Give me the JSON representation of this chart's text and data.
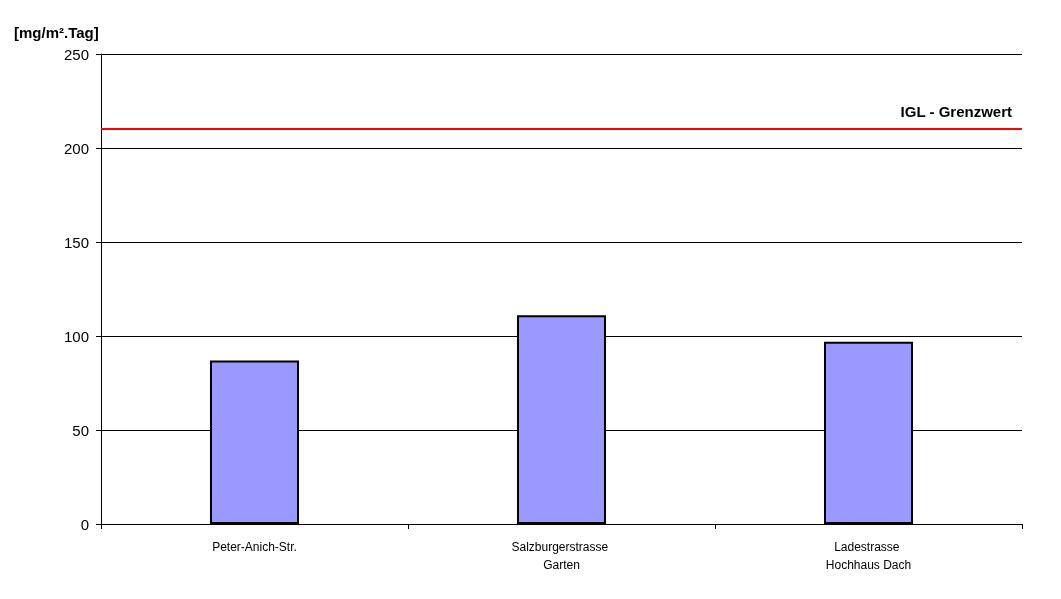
{
  "chart_data": {
    "type": "bar",
    "ylabel": "[mg/m².Tag]",
    "categories": [
      "Peter-Anich-Str.",
      "Salzburgerstrasse Garten",
      "Ladestrasse Hochhaus Dach"
    ],
    "values": [
      87,
      111,
      97
    ],
    "color": "#9999ff",
    "ylim": [
      0,
      250
    ],
    "yticks": [
      0,
      50,
      100,
      150,
      200,
      250
    ],
    "grid": "y",
    "ref_lines": [
      {
        "axis": "y",
        "value": 210,
        "label": "IGL - Grenzwert",
        "color": "#ff0000"
      }
    ]
  }
}
